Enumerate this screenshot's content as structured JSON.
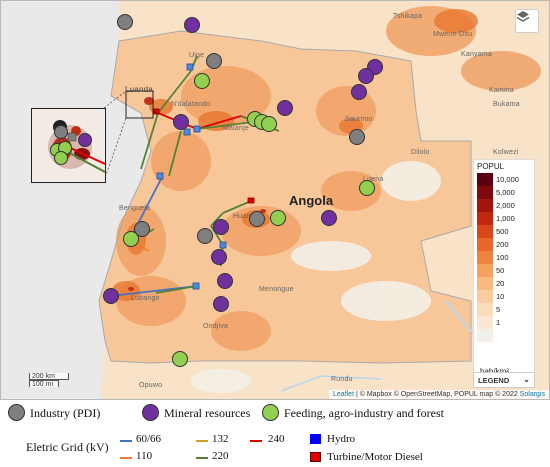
{
  "map": {
    "country_label": "Angola",
    "places": {
      "uige": "Uige",
      "luanda": "Luanda",
      "ndalatando": "N'dalatando",
      "malanje": "Malanje",
      "saurimo": "Saurimo",
      "dilolo": "Dilolo",
      "luena": "Luena",
      "benguela": "Benguela",
      "huambo": "Huambo",
      "menongue": "Menongue",
      "lubango": "Lubango",
      "ondjiva": "Ondjiva",
      "opuwo": "Opuwo",
      "rundu": "Rundu",
      "tshikapa": "Tshikapa",
      "mwene_ditu": "Mwene-Ditu",
      "kanyama": "Kanyama",
      "kamina": "Kamina",
      "bukama": "Bukama",
      "kolwezi": "Kolwezi"
    },
    "scale_km": "200 km",
    "scale_mi": "100 mi",
    "attribution": {
      "leaflet": "Leaflet",
      "text": " | © Mapbox © OpenStreetMap, POPUL map © 2022 ",
      "solargis": "Solargis"
    },
    "layers_icon": "layers-icon"
  },
  "density_legend": {
    "title": "POPUL",
    "unit": "hab/km²",
    "items": [
      {
        "label": "10,000",
        "color": "#5c0010"
      },
      {
        "label": "5,000",
        "color": "#7e0a10"
      },
      {
        "label": "2,000",
        "color": "#a3160f"
      },
      {
        "label": "1,000",
        "color": "#c2280f"
      },
      {
        "label": "500",
        "color": "#d9461a"
      },
      {
        "label": "200",
        "color": "#e8672a"
      },
      {
        "label": "100",
        "color": "#ef8440"
      },
      {
        "label": "50",
        "color": "#f4a25e"
      },
      {
        "label": "20",
        "color": "#f7ba80"
      },
      {
        "label": "10",
        "color": "#f9cda0"
      },
      {
        "label": "5",
        "color": "#fbdcbb"
      },
      {
        "label": "1",
        "color": "#fbe8d4"
      },
      {
        "label": "",
        "color": "#f3f0ea"
      }
    ],
    "button_label": "LEGEND",
    "button_icon": "chevron-down-icon"
  },
  "point_legend": {
    "industry": "Industry (PDI)",
    "mineral": "Mineral resources",
    "feeding": "Feeding, agro-industry and forest",
    "colors": {
      "industry": "#7f7f7f",
      "mineral": "#7030a0",
      "feeding": "#92d050"
    }
  },
  "grid_legend": {
    "title": "Eletric Grid (kV)",
    "lines": [
      {
        "label": "60/66",
        "color": "#4472c4"
      },
      {
        "label": "110",
        "color": "#ed7d31"
      },
      {
        "label": "132",
        "color": "#c9a227"
      },
      {
        "label": "220",
        "color": "#548235"
      },
      {
        "label": "240",
        "color": "#e00000"
      }
    ],
    "plants": [
      {
        "label": "Hydro",
        "color": "#0000ff"
      },
      {
        "label": "Turbine/Motor Diesel",
        "color": "#e00000"
      }
    ]
  }
}
